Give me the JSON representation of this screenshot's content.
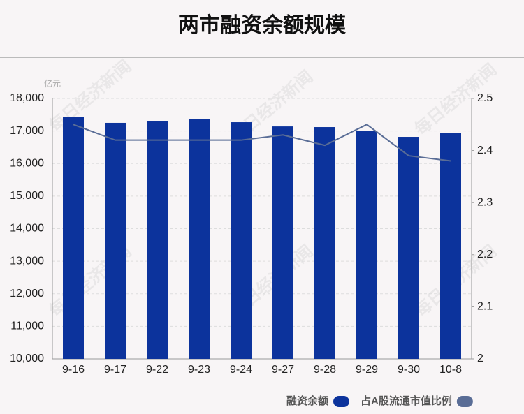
{
  "chart_data": {
    "type": "bar-line",
    "title": "两市融资余额规模",
    "unit": "亿元",
    "watermark": "每日经济新闻",
    "categories": [
      "9-16",
      "9-17",
      "9-22",
      "9-23",
      "9-24",
      "9-27",
      "9-28",
      "9-29",
      "9-30",
      "10-8"
    ],
    "series": [
      {
        "name": "融资余额",
        "color": "#0c339c",
        "type": "bar",
        "values": [
          17440,
          17250,
          17310,
          17360,
          17270,
          17140,
          17120,
          17010,
          16820,
          16930
        ]
      },
      {
        "name": "占A股流通市值比例",
        "color": "#5a6d96",
        "type": "line",
        "axis": "y2",
        "values": [
          2.45,
          2.42,
          2.42,
          2.42,
          2.42,
          2.43,
          2.41,
          2.45,
          2.39,
          2.38
        ]
      }
    ],
    "ylim": [
      10000,
      18000
    ],
    "yticks": [
      {
        "value": 10000,
        "label": "10,000"
      },
      {
        "value": 11000,
        "label": "11,000"
      },
      {
        "value": 12000,
        "label": "12,000"
      },
      {
        "value": 13000,
        "label": "13,000"
      },
      {
        "value": 14000,
        "label": "14,000"
      },
      {
        "value": 15000,
        "label": "15,000"
      },
      {
        "value": 16000,
        "label": "16,000"
      },
      {
        "value": 17000,
        "label": "17,000"
      },
      {
        "value": 18000,
        "label": "18,000"
      }
    ],
    "y2lim": [
      2,
      2.5
    ],
    "y2ticks": [
      2,
      2.1,
      2.2,
      2.3,
      2.4,
      2.5
    ],
    "grid": true
  }
}
